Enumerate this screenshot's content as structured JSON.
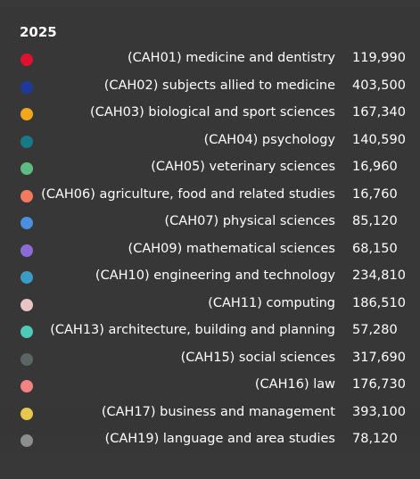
{
  "tooltip": {
    "title": "2025",
    "items": [
      {
        "label": "(CAH01) medicine and dentistry",
        "value": "119,990",
        "color": "#e0102f"
      },
      {
        "label": "(CAH02) subjects allied to medicine",
        "value": "403,500",
        "color": "#1d3a9a"
      },
      {
        "label": "(CAH03) biological and sport sciences",
        "value": "167,340",
        "color": "#f2a81d"
      },
      {
        "label": "(CAH04) psychology",
        "value": "140,590",
        "color": "#177a86"
      },
      {
        "label": "(CAH05) veterinary sciences",
        "value": "16,960",
        "color": "#5fbb82"
      },
      {
        "label": "(CAH06) agriculture, food and related studies",
        "value": "16,760",
        "color": "#f27a5e"
      },
      {
        "label": "(CAH07) physical sciences",
        "value": "85,120",
        "color": "#4a8fe0"
      },
      {
        "label": "(CAH09) mathematical sciences",
        "value": "68,150",
        "color": "#8a6cd4"
      },
      {
        "label": "(CAH10) engineering and technology",
        "value": "234,810",
        "color": "#3a9bc6"
      },
      {
        "label": "(CAH11) computing",
        "value": "186,510",
        "color": "#e8c4c4"
      },
      {
        "label": "(CAH13) architecture, building and planning",
        "value": "57,280",
        "color": "#4fcab8"
      },
      {
        "label": "(CAH15) social sciences",
        "value": "317,690",
        "color": "#5d6466"
      },
      {
        "label": "(CAH16) law",
        "value": "176,730",
        "color": "#f38383"
      },
      {
        "label": "(CAH17) business and management",
        "value": "393,100",
        "color": "#e8c84c"
      },
      {
        "label": "(CAH19) language and area studies",
        "value": "78,120",
        "color": "#8b908f"
      }
    ]
  }
}
